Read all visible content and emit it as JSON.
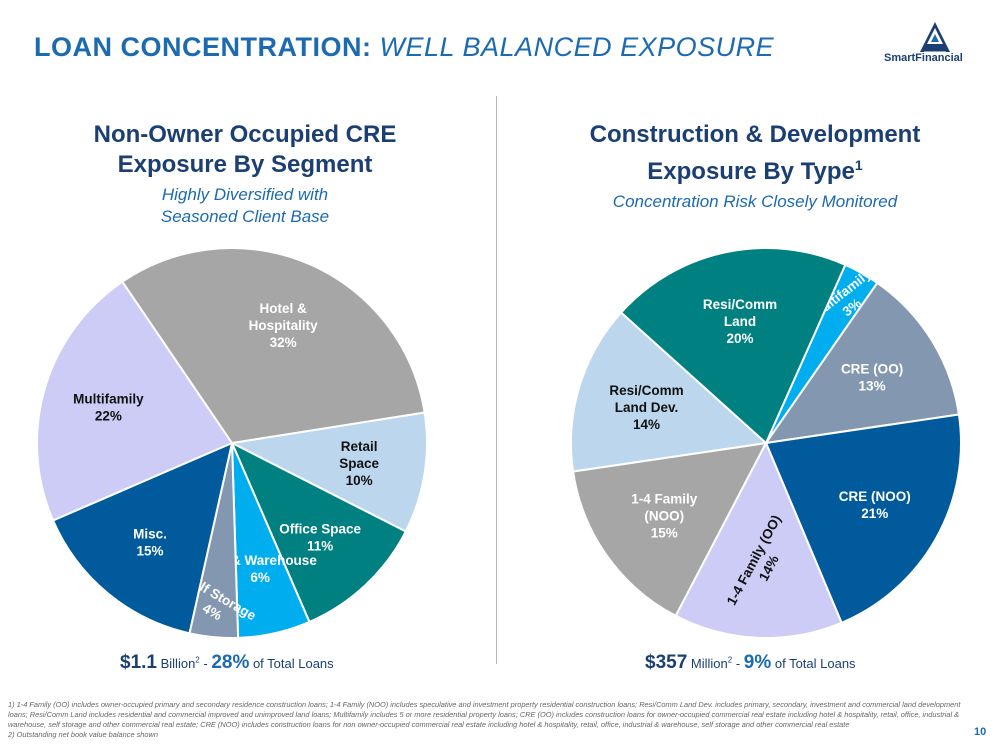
{
  "slide": {
    "title_main": "LOAN CONCENTRATION:",
    "title_sub": "WELL BALANCED EXPOSURE",
    "logo_text": "SmartFinancial",
    "page_number": "10"
  },
  "left_panel": {
    "title_line1": "Non-Owner Occupied CRE",
    "title_line2": "Exposure By Segment",
    "tagline_line1": "Highly Diversified with",
    "tagline_line2": "Seasoned Client Base",
    "summary": {
      "amount": "$1.1",
      "unit": "Billion",
      "unit_sup": "2",
      "sep": " - ",
      "pct": "28%",
      "suffix": " of Total Loans"
    }
  },
  "right_panel": {
    "title_line1": "Construction & Development",
    "title_line2": "Exposure By Type",
    "title_sup": "1",
    "tagline": "Concentration Risk Closely Monitored",
    "summary": {
      "amount": "$357",
      "unit": "Million",
      "unit_sup": "2",
      "sep": " - ",
      "pct": "9%",
      "suffix": " of Total Loans"
    }
  },
  "chart_data": [
    {
      "type": "pie",
      "title": "Non-Owner Occupied CRE Exposure By Segment",
      "slices": [
        {
          "name": "Retail Space",
          "label_lines": [
            "Retail",
            "Space",
            "10%"
          ],
          "value": 10,
          "color": "#bcd6ee",
          "text_color": "#111111"
        },
        {
          "name": "Office Space",
          "label_lines": [
            "Office Space",
            "11%"
          ],
          "value": 11,
          "color": "#008080",
          "text_color": "#ffffff"
        },
        {
          "name": "Ind. & Warehouse",
          "label_lines": [
            "Ind. & Warehouse",
            "6%"
          ],
          "value": 6,
          "color": "#00aeef",
          "text_color": "#ffffff"
        },
        {
          "name": "Self Storage",
          "label_lines": [
            "Self Storage",
            "4%"
          ],
          "value": 4,
          "color": "#8497b0",
          "text_color": "#ffffff"
        },
        {
          "name": "Misc.",
          "label_lines": [
            "Misc.",
            "15%"
          ],
          "value": 15,
          "color": "#005a9c",
          "text_color": "#ffffff"
        },
        {
          "name": "Multifamily",
          "label_lines": [
            "Multifamily",
            "22%"
          ],
          "value": 22,
          "color": "#ccccf6",
          "text_color": "#111111"
        },
        {
          "name": "Hotel & Hospitality",
          "label_lines": [
            "Hotel &",
            "Hospitality",
            "32%"
          ],
          "value": 32,
          "color": "#a6a6a6",
          "text_color": "#ffffff"
        }
      ]
    },
    {
      "type": "pie",
      "title": "Construction & Development Exposure By Type",
      "slices": [
        {
          "name": "Multifamily",
          "label_lines": [
            "Multifamily",
            "3%"
          ],
          "value": 3,
          "color": "#00aeef",
          "text_color": "#ffffff"
        },
        {
          "name": "CRE (OO)",
          "label_lines": [
            "CRE (OO)",
            "13%"
          ],
          "value": 13,
          "color": "#8497b0",
          "text_color": "#ffffff"
        },
        {
          "name": "CRE (NOO)",
          "label_lines": [
            "CRE (NOO)",
            "21%"
          ],
          "value": 21,
          "color": "#005a9c",
          "text_color": "#ffffff"
        },
        {
          "name": "1-4 Family (OO)",
          "label_lines": [
            "1-4 Family (OO)",
            "14%"
          ],
          "value": 14,
          "color": "#ccccf6",
          "text_color": "#111111"
        },
        {
          "name": "1-4 Family (NOO)",
          "label_lines": [
            "1-4 Family",
            "(NOO)",
            "15%"
          ],
          "value": 15,
          "color": "#a6a6a6",
          "text_color": "#ffffff"
        },
        {
          "name": "Resi/Comm Land Dev.",
          "label_lines": [
            "Resi/Comm",
            "Land Dev.",
            "14%"
          ],
          "value": 14,
          "color": "#bcd6ee",
          "text_color": "#111111"
        },
        {
          "name": "Resi/Comm Land",
          "label_lines": [
            "Resi/Comm",
            "Land",
            "20%"
          ],
          "value": 20,
          "color": "#008080",
          "text_color": "#ffffff"
        }
      ]
    }
  ],
  "footnotes": [
    "1)  1-4 Family (OO) includes owner-occupied primary and secondary residence construction loans; 1-4 Family (NOO) includes speculative and investment property residential construction loans; Resi/Comm Land Dev. includes primary, secondary, investment and commercial land development loans; Resi/Comm Land includes residential and commercial improved and unimproved  land loans; Multifamily includes 5 or more residential property loans; CRE (OO) includes construction loans for owner-occupied commercial real estate including hotel & hospitality, retail, office, industrial & warehouse, self storage and other commercial real estate; CRE (NOO) includes construction loans for non owner-occupied commercial real estate including hotel & hospitality, retail, office, industrial & warehouse, self storage and other commercial real estate",
    "2)  Outstanding net book value balance shown"
  ]
}
